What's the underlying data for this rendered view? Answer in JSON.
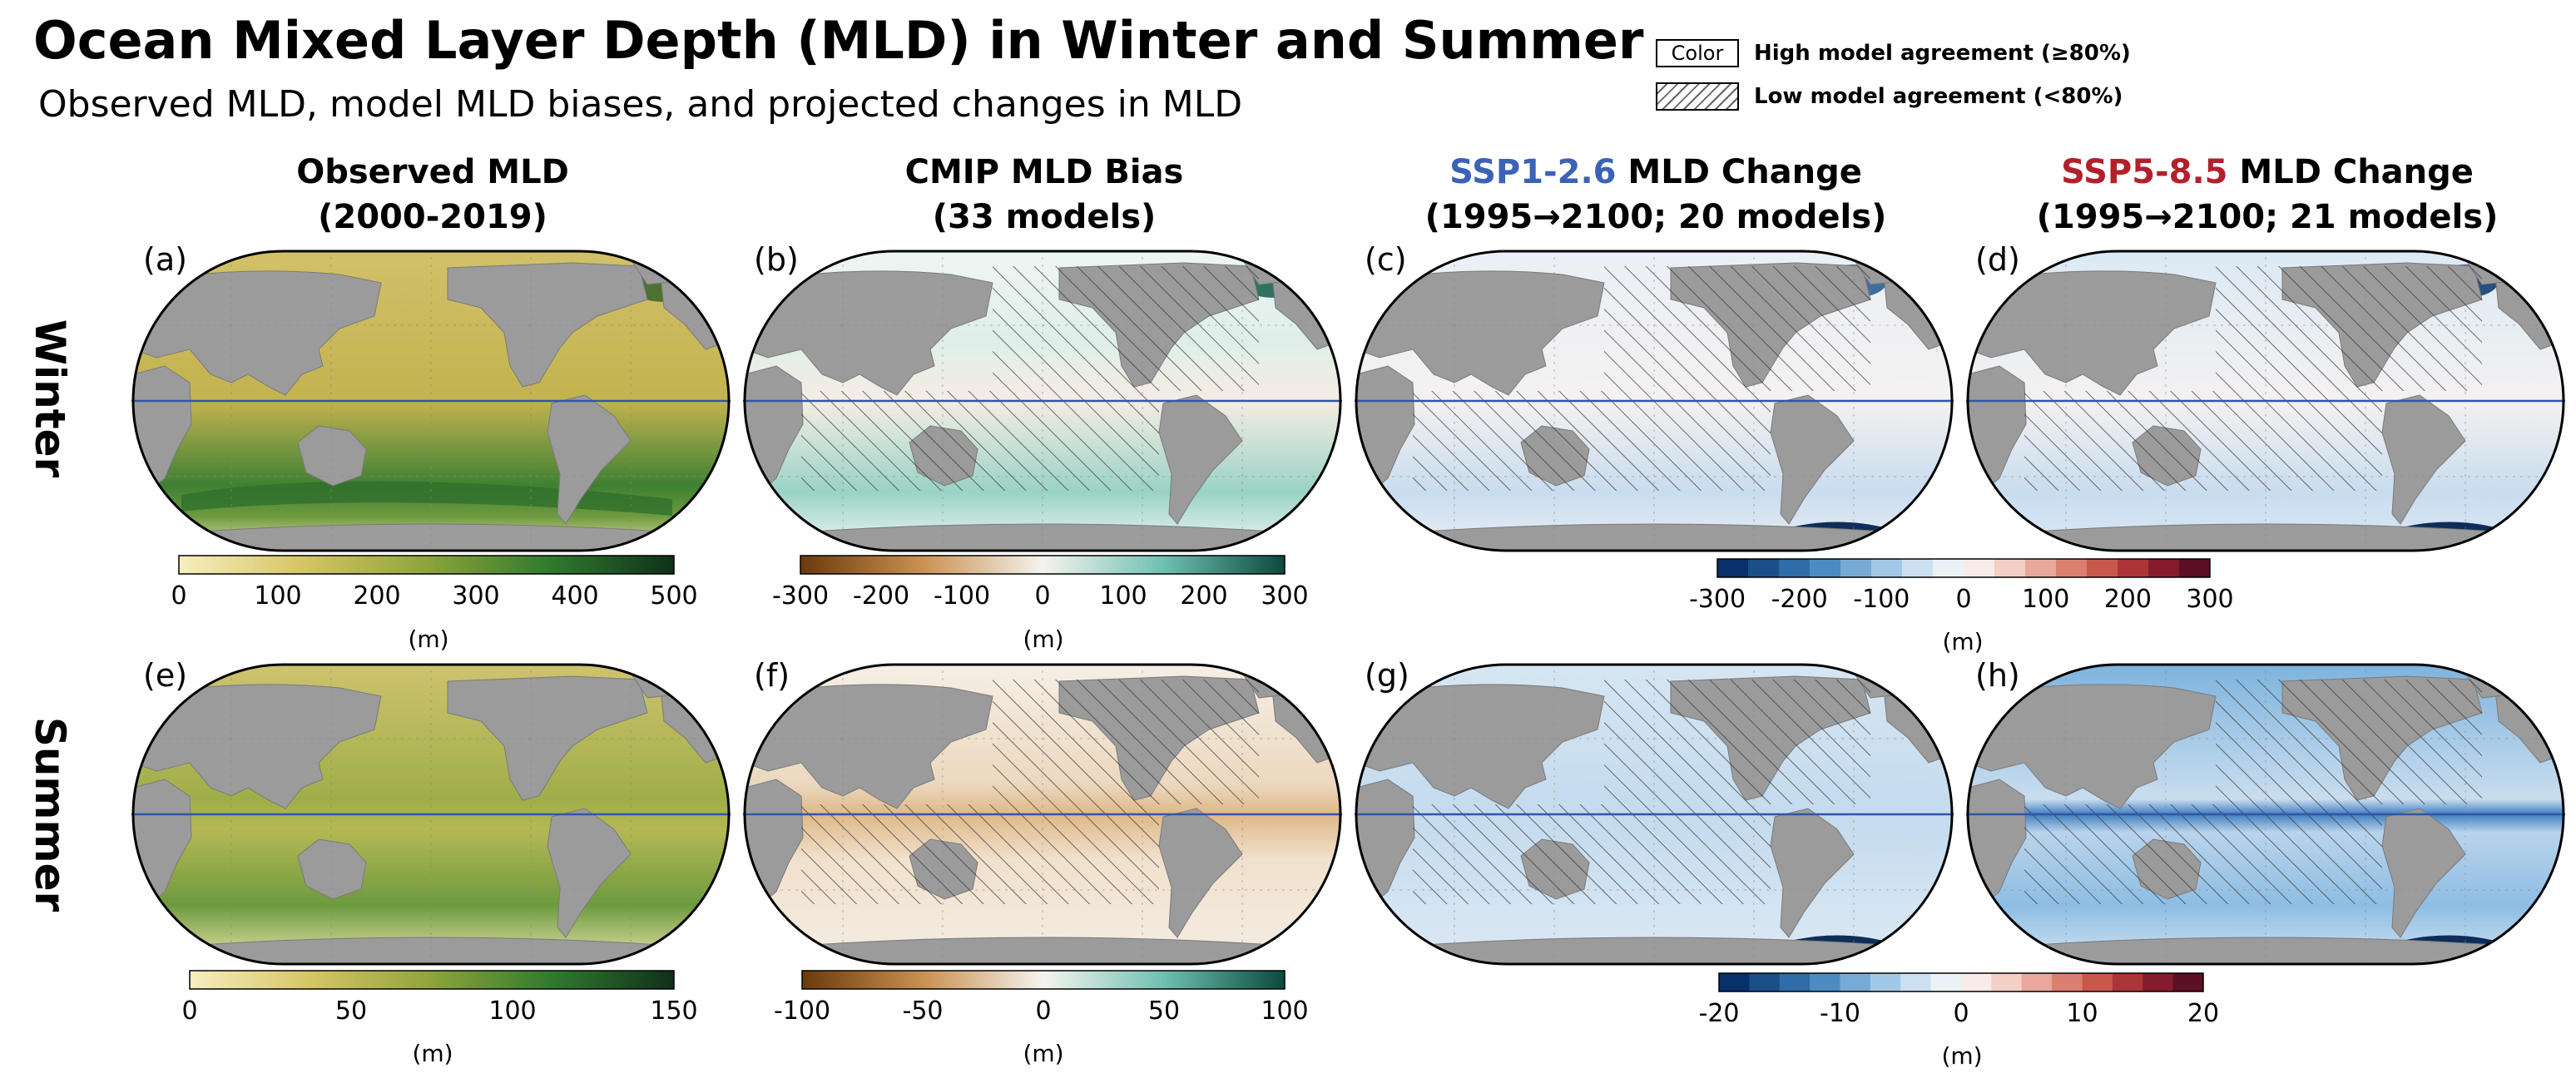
{
  "title": "Ocean Mixed Layer Depth (MLD) in Winter and Summer",
  "subtitle": "Observed MLD, model MLD biases, and projected changes in MLD",
  "legend": {
    "high_box": "Color",
    "high_text": "High model agreement (≥80%)",
    "low_text": "Low model agreement (<80%)"
  },
  "columns": [
    {
      "line1": "Observed MLD",
      "line2": "(2000-2019)"
    },
    {
      "line1": "CMIP MLD Bias",
      "line2": "(33 models)"
    },
    {
      "line1_colored": "SSP1-2.6",
      "line1_rest": " MLD Change",
      "line2": "(1995→2100; 20 models)"
    },
    {
      "line1_colored": "SSP5-8.5",
      "line1_rest": " MLD Change",
      "line2": "(1995→2100; 21 models)"
    }
  ],
  "rows": [
    "Winter",
    "Summer"
  ],
  "panels": [
    "(a)",
    "(b)",
    "(c)",
    "(d)",
    "(e)",
    "(f)",
    "(g)",
    "(h)"
  ],
  "colorbars": {
    "obs_winter": {
      "ticks": [
        "0",
        "100",
        "200",
        "300",
        "400",
        "500"
      ],
      "unit": "(m)"
    },
    "bias_winter": {
      "ticks": [
        "-300",
        "-200",
        "-100",
        "0",
        "100",
        "200",
        "300"
      ],
      "unit": "(m)"
    },
    "change_winter": {
      "ticks": [
        "-300",
        "-200",
        "-100",
        "0",
        "100",
        "200",
        "300"
      ],
      "unit": "(m)"
    },
    "obs_summer": {
      "ticks": [
        "0",
        "50",
        "100",
        "150"
      ],
      "unit": "(m)"
    },
    "bias_summer": {
      "ticks": [
        "-100",
        "-50",
        "0",
        "50",
        "100"
      ],
      "unit": "(m)"
    },
    "change_summer": {
      "ticks": [
        "-20",
        "-10",
        "0",
        "10",
        "20"
      ],
      "unit": "(m)"
    }
  },
  "colors": {
    "land": "#9b9b9b",
    "equator": "#3355aa",
    "ssp126": "#3b62b6",
    "ssp585": "#b3202a"
  }
}
